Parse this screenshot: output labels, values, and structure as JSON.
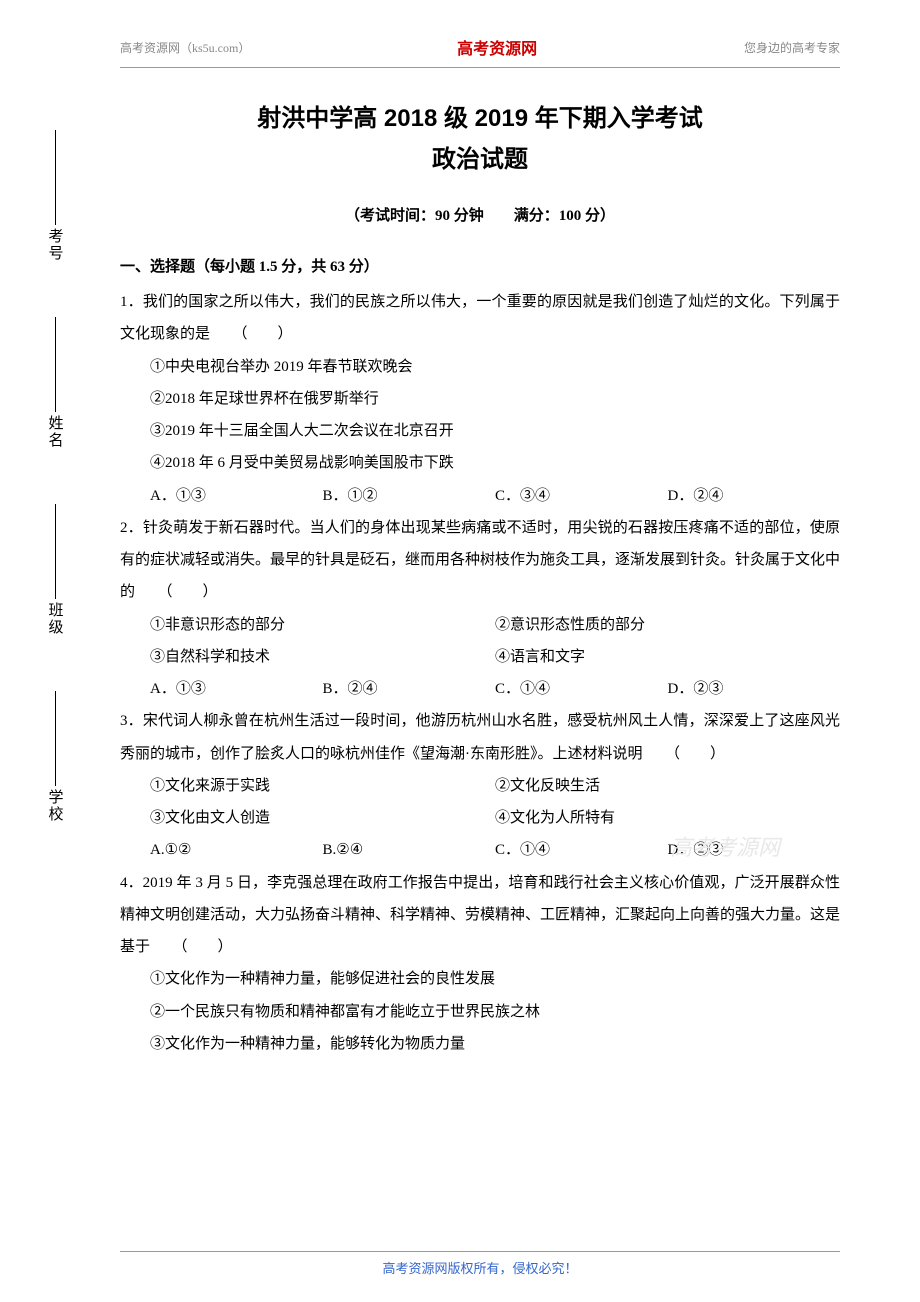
{
  "header": {
    "left": "高考资源网（ks5u.com）",
    "center": "高考资源网",
    "right": "您身边的高考专家"
  },
  "title": {
    "line1": "射洪中学高 2018 级 2019 年下期入学考试",
    "line2": "政治试题"
  },
  "exam_info": "（考试时间：90 分钟　　满分：100 分）",
  "section_head": "一、选择题（每小题 1.5 分，共 63 分）",
  "sidebar": {
    "items": [
      "考号",
      "姓名",
      "班级",
      "学校"
    ]
  },
  "questions": [
    {
      "num": "1",
      "text": "1．我们的国家之所以伟大，我们的民族之所以伟大，一个重要的原因就是我们创造了灿烂的文化。下列属于文化现象的是　　（　　）",
      "lines": [
        "①中央电视台举办 2019 年春节联欢晚会",
        "②2018 年足球世界杯在俄罗斯举行",
        "③2019 年十三届全国人大二次会议在北京召开",
        "④2018 年 6 月受中美贸易战影响美国股市下跌"
      ],
      "options": [
        "A．①③",
        "B．①②",
        "C．③④",
        "D．②④"
      ]
    },
    {
      "num": "2",
      "text": "2．针灸萌发于新石器时代。当人们的身体出现某些病痛或不适时，用尖锐的石器按压疼痛不适的部位，使原有的症状减轻或消失。最早的针具是砭石，继而用各种树枝作为施灸工具，逐渐发展到针灸。针灸属于文化中的　　（　　）",
      "lines_inline": [
        [
          "①非意识形态的部分",
          "②意识形态性质的部分"
        ],
        [
          "③自然科学和技术",
          "④语言和文字"
        ]
      ],
      "options": [
        "A．①③",
        "B．②④",
        "C．①④",
        "D．②③"
      ]
    },
    {
      "num": "3",
      "text": "3．宋代词人柳永曾在杭州生活过一段时间，他游历杭州山水名胜，感受杭州风土人情，深深爱上了这座风光秀丽的城市，创作了脍炙人口的咏杭州佳作《望海潮·东南形胜》。上述材料说明　　（　　）",
      "lines_inline": [
        [
          "①文化来源于实践",
          "②文化反映生活"
        ],
        [
          "③文化由文人创造",
          "④文化为人所特有"
        ]
      ],
      "options": [
        "A.①②",
        "B.②④",
        "C．①④",
        "D．②③"
      ]
    },
    {
      "num": "4",
      "text": "4．2019 年 3 月 5 日，李克强总理在政府工作报告中提出，培育和践行社会主义核心价值观，广泛开展群众性精神文明创建活动，大力弘扬奋斗精神、科学精神、劳模精神、工匠精神，汇聚起向上向善的强大力量。这是基于　　（　　）",
      "lines": [
        "①文化作为一种精神力量，能够促进社会的良性发展",
        "②一个民族只有物质和精神都富有才能屹立于世界民族之林",
        "③文化作为一种精神力量，能够转化为物质力量"
      ]
    }
  ],
  "watermark": "高考考源网",
  "footer": "高考资源网版权所有，侵权必究！"
}
